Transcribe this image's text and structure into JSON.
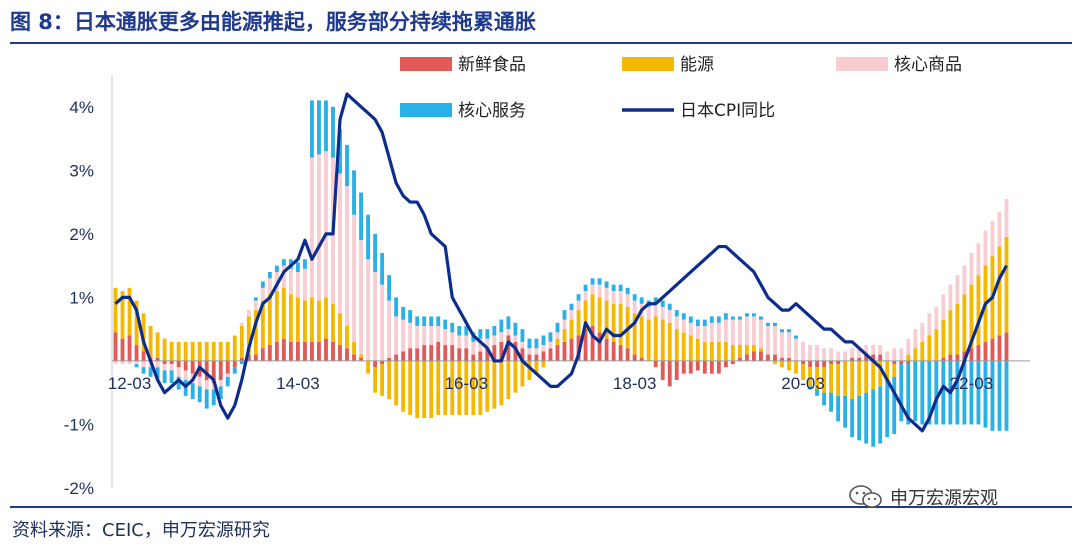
{
  "header": {
    "title": "图 8：日本通胀更多由能源推起，服务部分持续拖累通胀"
  },
  "footer": {
    "source": "资料来源：CEIC，申万宏源研究",
    "watermark": "申万宏源宏观"
  },
  "colors": {
    "fresh_food": "#e05a5a",
    "energy": "#f5b800",
    "core_goods": "#f7cdd2",
    "core_services": "#29b0e6",
    "cpi_line": "#0d2d8c",
    "title": "#1f3a8a"
  },
  "chart_data": {
    "type": "bar",
    "stacked": true,
    "x_start": "2012-01",
    "x_frequency": "monthly",
    "x_count": 128,
    "x_tick_labels": [
      "12-03",
      "14-03",
      "16-03",
      "18-03",
      "20-03",
      "22-03"
    ],
    "x_tick_months": [
      "2012-03",
      "2014-03",
      "2016-03",
      "2018-03",
      "2020-03",
      "2022-03"
    ],
    "y_tick_labels": [
      "4%",
      "3%",
      "2%",
      "1%",
      "-1%",
      "-2%"
    ],
    "y_tick_values": [
      4,
      3,
      2,
      1,
      -1,
      -2
    ],
    "ylim": [
      -2.0,
      4.5
    ],
    "legend_position": "top",
    "series": [
      {
        "name": "新鲜食品",
        "key": "fresh_food",
        "values": [
          0.45,
          0.35,
          0.4,
          0.25,
          0.15,
          0.05,
          0.05,
          -0.05,
          -0.05,
          -0.1,
          -0.15,
          -0.2,
          -0.25,
          -0.3,
          -0.35,
          -0.3,
          -0.2,
          -0.1,
          0.05,
          0.1,
          0.1,
          0.2,
          0.25,
          0.3,
          0.35,
          0.3,
          0.3,
          0.3,
          0.3,
          0.3,
          0.35,
          0.3,
          0.25,
          0.2,
          0.1,
          0.05,
          0.0,
          -0.1,
          -0.05,
          0.05,
          0.1,
          0.15,
          0.2,
          0.2,
          0.25,
          0.25,
          0.3,
          0.25,
          0.25,
          0.2,
          0.2,
          0.1,
          0.15,
          0.2,
          0.25,
          0.3,
          0.4,
          0.3,
          0.2,
          0.1,
          0.1,
          0.15,
          0.2,
          0.25,
          0.3,
          0.35,
          0.4,
          0.5,
          0.55,
          0.45,
          0.35,
          0.3,
          0.25,
          0.2,
          0.1,
          0.05,
          0.0,
          -0.1,
          -0.3,
          -0.4,
          -0.3,
          -0.2,
          -0.2,
          -0.15,
          -0.2,
          -0.2,
          -0.2,
          -0.1,
          -0.05,
          0.05,
          0.1,
          0.15,
          0.15,
          0.1,
          0.1,
          0.05,
          0.05,
          0.0,
          -0.05,
          -0.1,
          -0.1,
          -0.1,
          -0.05,
          -0.05,
          0.0,
          0.05,
          0.05,
          0.1,
          0.1,
          0.1,
          0.0,
          -0.05,
          -0.05,
          -0.05,
          0.0,
          0.0,
          0.0,
          0.0,
          0.05,
          0.1,
          0.1,
          0.15,
          0.2,
          0.25,
          0.3,
          0.35,
          0.4,
          0.45
        ]
      },
      {
        "name": "能源",
        "key": "energy",
        "values": [
          0.7,
          0.75,
          0.75,
          0.7,
          0.6,
          0.5,
          0.4,
          0.35,
          0.3,
          0.3,
          0.3,
          0.3,
          0.3,
          0.3,
          0.3,
          0.3,
          0.3,
          0.4,
          0.5,
          0.6,
          0.7,
          0.75,
          0.8,
          0.8,
          0.8,
          0.75,
          0.7,
          0.65,
          0.7,
          0.65,
          0.65,
          0.6,
          0.5,
          0.35,
          0.2,
          0.05,
          -0.2,
          -0.4,
          -0.5,
          -0.6,
          -0.7,
          -0.8,
          -0.85,
          -0.9,
          -0.9,
          -0.9,
          -0.85,
          -0.85,
          -0.85,
          -0.85,
          -0.85,
          -0.85,
          -0.85,
          -0.8,
          -0.75,
          -0.7,
          -0.6,
          -0.5,
          -0.4,
          -0.3,
          -0.2,
          -0.1,
          0.0,
          0.1,
          0.2,
          0.3,
          0.4,
          0.45,
          0.5,
          0.55,
          0.6,
          0.6,
          0.65,
          0.65,
          0.65,
          0.65,
          0.65,
          0.7,
          0.65,
          0.6,
          0.5,
          0.45,
          0.4,
          0.35,
          0.3,
          0.3,
          0.3,
          0.3,
          0.25,
          0.2,
          0.15,
          0.1,
          0.05,
          0.0,
          -0.05,
          -0.1,
          -0.15,
          -0.2,
          -0.25,
          -0.3,
          -0.35,
          -0.4,
          -0.45,
          -0.5,
          -0.55,
          -0.6,
          -0.55,
          -0.5,
          -0.45,
          -0.4,
          -0.3,
          -0.2,
          0.0,
          0.1,
          0.2,
          0.3,
          0.4,
          0.5,
          0.6,
          0.7,
          0.8,
          0.9,
          1.0,
          1.1,
          1.2,
          1.3,
          1.4,
          1.5
        ]
      },
      {
        "name": "核心商品",
        "key": "core_goods",
        "values": [
          -0.05,
          -0.05,
          -0.05,
          -0.05,
          -0.1,
          -0.1,
          -0.1,
          -0.1,
          -0.1,
          -0.15,
          -0.15,
          -0.15,
          -0.15,
          -0.15,
          -0.1,
          -0.1,
          -0.05,
          0.0,
          0.05,
          0.1,
          0.15,
          0.2,
          0.25,
          0.3,
          0.35,
          0.4,
          0.4,
          0.5,
          2.2,
          2.3,
          2.3,
          2.3,
          2.2,
          2.2,
          2.0,
          1.8,
          1.6,
          1.4,
          1.2,
          0.9,
          0.6,
          0.5,
          0.4,
          0.35,
          0.3,
          0.3,
          0.25,
          0.25,
          0.2,
          0.2,
          0.2,
          0.2,
          0.2,
          0.15,
          0.15,
          0.15,
          0.1,
          0.1,
          0.1,
          0.1,
          0.1,
          0.1,
          0.1,
          0.1,
          0.15,
          0.15,
          0.15,
          0.15,
          0.15,
          0.2,
          0.2,
          0.2,
          0.2,
          0.2,
          0.2,
          0.2,
          0.2,
          0.2,
          0.2,
          0.2,
          0.2,
          0.2,
          0.2,
          0.2,
          0.25,
          0.3,
          0.3,
          0.35,
          0.4,
          0.4,
          0.45,
          0.45,
          0.45,
          0.45,
          0.45,
          0.4,
          0.4,
          0.35,
          0.3,
          0.25,
          0.25,
          0.2,
          0.2,
          0.15,
          0.15,
          0.15,
          0.15,
          0.15,
          0.15,
          0.15,
          0.15,
          0.2,
          0.2,
          0.25,
          0.3,
          0.3,
          0.35,
          0.35,
          0.4,
          0.4,
          0.45,
          0.45,
          0.5,
          0.5,
          0.55,
          0.55,
          0.55,
          0.6
        ]
      },
      {
        "name": "核心服务",
        "key": "core_services",
        "values": [
          0.0,
          0.0,
          0.0,
          -0.05,
          -0.1,
          -0.15,
          -0.2,
          -0.2,
          -0.2,
          -0.2,
          -0.25,
          -0.25,
          -0.25,
          -0.3,
          -0.25,
          -0.2,
          -0.15,
          -0.1,
          -0.05,
          0.0,
          0.05,
          0.1,
          0.1,
          0.1,
          0.1,
          0.15,
          0.15,
          0.15,
          0.9,
          0.85,
          0.8,
          0.8,
          0.7,
          0.65,
          0.7,
          0.75,
          0.7,
          0.6,
          0.5,
          0.4,
          0.3,
          0.2,
          0.2,
          0.15,
          0.15,
          0.15,
          0.15,
          0.15,
          0.15,
          0.15,
          0.15,
          0.15,
          0.15,
          0.15,
          0.15,
          0.2,
          0.2,
          0.2,
          0.2,
          0.15,
          0.15,
          0.15,
          0.15,
          0.15,
          0.15,
          0.1,
          0.1,
          0.1,
          0.1,
          0.1,
          0.1,
          0.1,
          0.1,
          0.1,
          0.1,
          0.1,
          0.1,
          0.1,
          0.1,
          0.1,
          0.1,
          0.1,
          0.1,
          0.1,
          0.1,
          0.1,
          0.1,
          0.1,
          0.05,
          0.05,
          0.05,
          0.05,
          0.05,
          0.05,
          0.05,
          0.05,
          0.05,
          0.05,
          0.0,
          -0.05,
          -0.1,
          -0.2,
          -0.3,
          -0.4,
          -0.5,
          -0.6,
          -0.7,
          -0.8,
          -0.9,
          -0.9,
          -0.9,
          -0.9,
          -0.9,
          -0.95,
          -0.95,
          -1.0,
          -1.0,
          -1.0,
          -1.0,
          -1.0,
          -1.0,
          -1.0,
          -1.0,
          -1.0,
          -1.05,
          -1.1,
          -1.1,
          -1.1
        ]
      }
    ],
    "line_series": {
      "name": "日本CPI同比",
      "key": "cpi_line",
      "values": [
        0.9,
        1.0,
        1.0,
        0.8,
        0.3,
        0.0,
        -0.3,
        -0.5,
        -0.4,
        -0.3,
        -0.4,
        -0.3,
        -0.1,
        -0.2,
        -0.3,
        -0.7,
        -0.9,
        -0.7,
        -0.3,
        0.2,
        0.6,
        0.9,
        1.0,
        1.2,
        1.4,
        1.5,
        1.6,
        1.9,
        1.6,
        1.8,
        2.0,
        2.0,
        3.8,
        4.2,
        4.1,
        4.0,
        3.9,
        3.8,
        3.6,
        3.2,
        2.8,
        2.6,
        2.5,
        2.5,
        2.3,
        2.0,
        1.9,
        1.8,
        1.0,
        0.8,
        0.6,
        0.4,
        0.3,
        0.2,
        0.0,
        0.0,
        0.3,
        0.2,
        0.0,
        -0.1,
        -0.2,
        -0.3,
        -0.4,
        -0.4,
        -0.3,
        -0.2,
        0.1,
        0.6,
        0.4,
        0.3,
        0.5,
        0.4,
        0.4,
        0.5,
        0.6,
        0.8,
        0.9,
        0.9,
        1.0,
        1.1,
        1.2,
        1.3,
        1.4,
        1.5,
        1.6,
        1.7,
        1.8,
        1.8,
        1.7,
        1.6,
        1.5,
        1.4,
        1.2,
        1.0,
        0.9,
        0.8,
        0.8,
        0.9,
        0.8,
        0.7,
        0.6,
        0.5,
        0.5,
        0.4,
        0.3,
        0.3,
        0.2,
        0.1,
        0.0,
        -0.1,
        -0.3,
        -0.5,
        -0.7,
        -0.9,
        -1.0,
        -1.1,
        -0.9,
        -0.6,
        -0.4,
        -0.5,
        -0.3,
        0.0,
        0.3,
        0.6,
        0.9,
        1.0,
        1.3,
        1.5
      ]
    }
  }
}
